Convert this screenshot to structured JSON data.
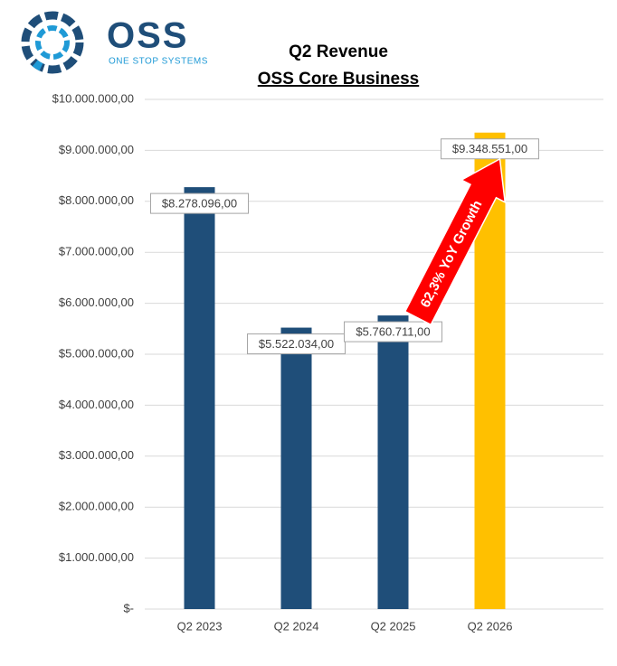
{
  "logo": {
    "name": "OSS",
    "tagline": "ONE STOP SYSTEMS"
  },
  "chart_data": {
    "type": "bar",
    "title": "Q2 Revenue",
    "subtitle": "OSS Core Business",
    "categories": [
      "Q2 2023",
      "Q2 2024",
      "Q2 2025",
      "Q2 2026"
    ],
    "values": [
      8278096,
      5522034,
      5760711,
      9348551
    ],
    "value_labels": [
      "$8.278.096,00",
      "$5.522.034,00",
      "$5.760.711,00",
      "$9.348.551,00"
    ],
    "colors": [
      "#1f4e79",
      "#1f4e79",
      "#1f4e79",
      "#ffc000"
    ],
    "ylim": [
      0,
      10000000
    ],
    "yticks": [
      {
        "value": 0,
        "label": "$-"
      },
      {
        "value": 1000000,
        "label": "$1.000.000,00"
      },
      {
        "value": 2000000,
        "label": "$2.000.000,00"
      },
      {
        "value": 3000000,
        "label": "$3.000.000,00"
      },
      {
        "value": 4000000,
        "label": "$4.000.000,00"
      },
      {
        "value": 5000000,
        "label": "$5.000.000,00"
      },
      {
        "value": 6000000,
        "label": "$6.000.000,00"
      },
      {
        "value": 7000000,
        "label": "$7.000.000,00"
      },
      {
        "value": 8000000,
        "label": "$8.000.000,00"
      },
      {
        "value": 9000000,
        "label": "$9.000.000,00"
      },
      {
        "value": 10000000,
        "label": "$10.000.000,00"
      }
    ],
    "grid": true,
    "annotation": "62,3% YoY Growth"
  }
}
